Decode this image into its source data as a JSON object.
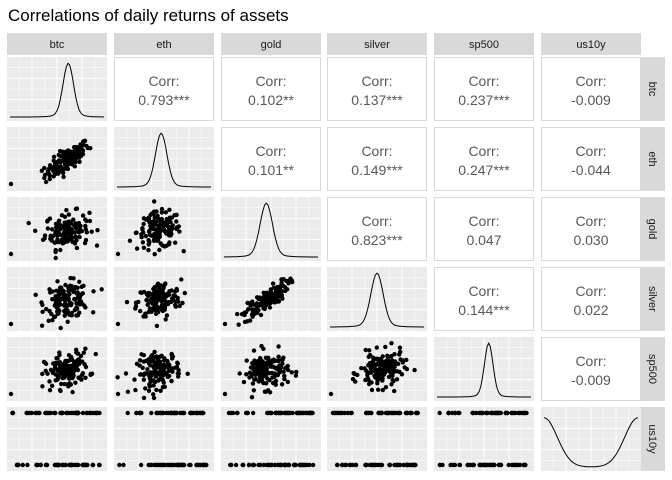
{
  "chart_data": {
    "type": "scatter",
    "subtype": "pairs-plot-correlation-matrix",
    "title": "Correlations of daily returns of assets",
    "variables": [
      "btc",
      "eth",
      "gold",
      "silver",
      "sp500",
      "us10y"
    ],
    "correlations": [
      {
        "row": "eth",
        "col": "btc",
        "label": "Corr:",
        "value": "0.793***"
      },
      {
        "row": "gold",
        "col": "btc",
        "label": "Corr:",
        "value": "0.102**"
      },
      {
        "row": "silver",
        "col": "btc",
        "label": "Corr:",
        "value": "0.137***"
      },
      {
        "row": "sp500",
        "col": "btc",
        "label": "Corr:",
        "value": "0.237***"
      },
      {
        "row": "us10y",
        "col": "btc",
        "label": "Corr:",
        "value": "-0.009"
      },
      {
        "row": "gold",
        "col": "eth",
        "label": "Corr:",
        "value": "0.101**"
      },
      {
        "row": "silver",
        "col": "eth",
        "label": "Corr:",
        "value": "0.149***"
      },
      {
        "row": "sp500",
        "col": "eth",
        "label": "Corr:",
        "value": "0.247***"
      },
      {
        "row": "us10y",
        "col": "eth",
        "label": "Corr:",
        "value": "-0.044"
      },
      {
        "row": "silver",
        "col": "gold",
        "label": "Corr:",
        "value": "0.823***"
      },
      {
        "row": "sp500",
        "col": "gold",
        "label": "Corr:",
        "value": "0.047"
      },
      {
        "row": "us10y",
        "col": "gold",
        "label": "Corr:",
        "value": "0.030"
      },
      {
        "row": "sp500",
        "col": "silver",
        "label": "Corr:",
        "value": "0.144***"
      },
      {
        "row": "us10y",
        "col": "silver",
        "label": "Corr:",
        "value": "0.022"
      },
      {
        "row": "us10y",
        "col": "sp500",
        "label": "Corr:",
        "value": "-0.009"
      }
    ],
    "diagonal": "density",
    "lower": "scatter",
    "upper": "correlation-text",
    "grid": true,
    "colors": {
      "strip_bg": "#d9d9d9",
      "panel_bg": "#ebebeb",
      "grid_line": "#ffffff",
      "point": "#000000",
      "corr_text": "#595959",
      "strip_text": "#1a1a1a",
      "upper_panel_border": "#d9d9d9"
    }
  }
}
